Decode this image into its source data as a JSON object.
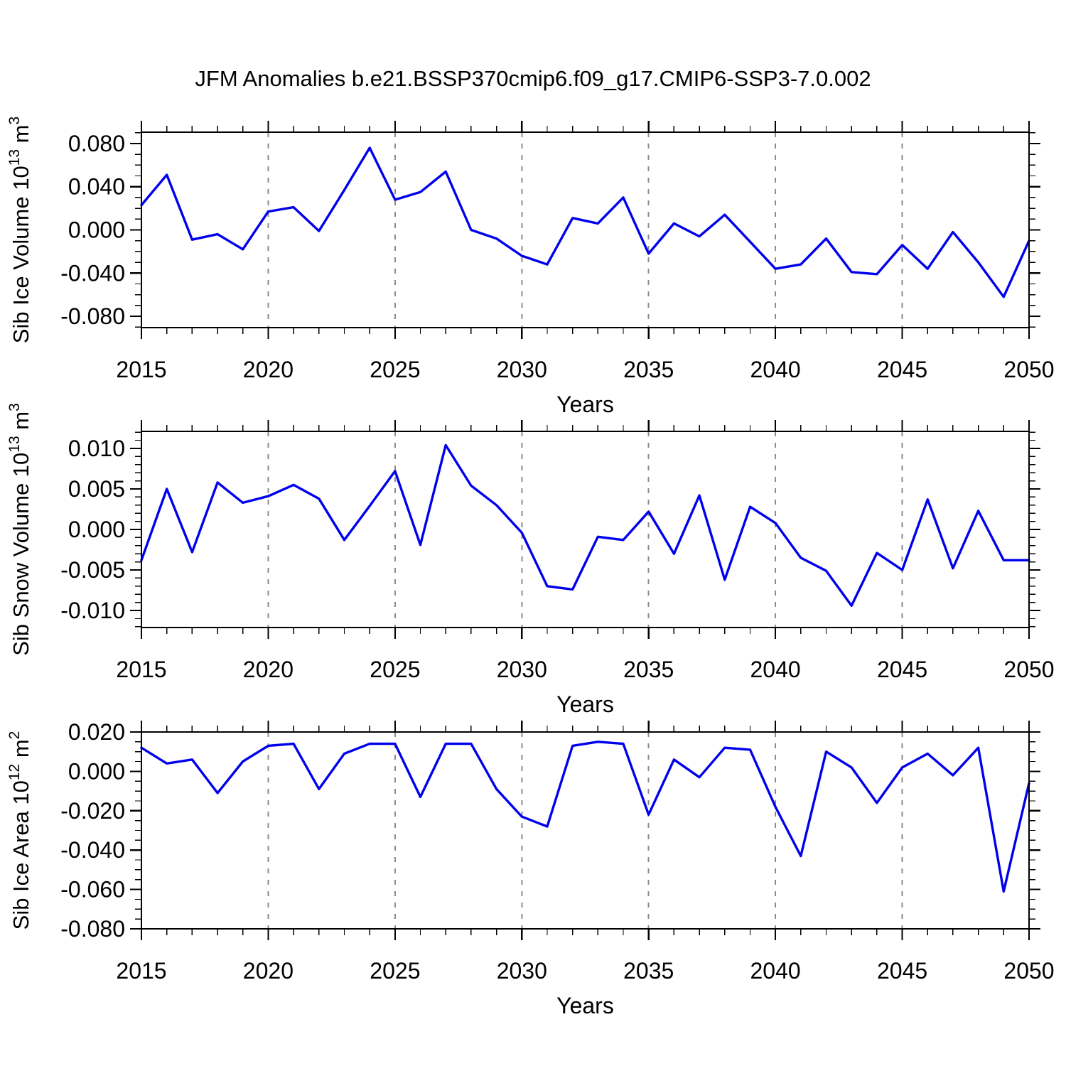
{
  "title": "JFM Anomalies b.e21.BSSP370cmip6.f09_g17.CMIP6-SSP3-7.0.002",
  "xlabel": "Years",
  "colors": {
    "line": "#0000ee",
    "frame": "#000000",
    "grid": "#8c8c8c",
    "text": "#000000",
    "background": "#ffffff"
  },
  "years": [
    2015,
    2016,
    2017,
    2018,
    2019,
    2020,
    2021,
    2022,
    2023,
    2024,
    2025,
    2026,
    2027,
    2028,
    2029,
    2030,
    2031,
    2032,
    2033,
    2034,
    2035,
    2036,
    2037,
    2038,
    2039,
    2040,
    2041,
    2042,
    2043,
    2044,
    2045,
    2046,
    2047,
    2048,
    2049,
    2050
  ],
  "x_axis": {
    "min": 2015,
    "max": 2050,
    "major_ticks": [
      2015,
      2020,
      2025,
      2030,
      2035,
      2040,
      2045,
      2050
    ],
    "minor_step": 1,
    "gridline_years": [
      2020,
      2025,
      2030,
      2035,
      2040,
      2045
    ],
    "grid_on": "dashed-vertical-only"
  },
  "chart_data": [
    {
      "type": "line",
      "name": "sib-ice-volume",
      "ylabel": "Sib Ice Volume 10^13 m^3",
      "ylabel_parts": [
        {
          "t": "Sib Ice Volume 10"
        },
        {
          "sup": "13"
        },
        {
          "t": " m"
        },
        {
          "sup": "3"
        }
      ],
      "ylim": [
        -0.0905,
        0.0905
      ],
      "ytick_values": [
        0.08,
        0.04,
        0.0,
        -0.04,
        -0.08
      ],
      "ytick_labels": [
        "0.080",
        "0.040",
        "0.000",
        "-0.040",
        "-0.080"
      ],
      "yminor_step": 0.01,
      "values": [
        0.023,
        0.051,
        -0.009,
        -0.004,
        -0.018,
        0.017,
        0.021,
        -0.001,
        0.037,
        0.076,
        0.028,
        0.035,
        0.054,
        0.0,
        -0.008,
        -0.024,
        -0.032,
        0.011,
        0.006,
        0.03,
        -0.022,
        0.006,
        -0.006,
        0.014,
        -0.011,
        -0.036,
        -0.032,
        -0.008,
        -0.039,
        -0.041,
        -0.014,
        -0.036,
        -0.002,
        -0.03,
        -0.062,
        -0.01
      ]
    },
    {
      "type": "line",
      "name": "sib-snow-volume",
      "ylabel": "Sib Snow Volume 10^13 m^3",
      "ylabel_parts": [
        {
          "t": "Sib Snow Volume 10"
        },
        {
          "sup": "13"
        },
        {
          "t": " m"
        },
        {
          "sup": "3"
        }
      ],
      "ylim": [
        -0.0121,
        0.0121
      ],
      "ytick_values": [
        0.01,
        0.005,
        0.0,
        -0.005,
        -0.01
      ],
      "ytick_labels": [
        "0.010",
        "0.005",
        "0.000",
        "-0.005",
        "-0.010"
      ],
      "yminor_step": 0.001,
      "values": [
        -0.0038,
        0.005,
        -0.0028,
        0.0058,
        0.0033,
        0.0041,
        0.0055,
        0.0038,
        -0.0013,
        0.0029,
        0.0072,
        -0.0019,
        0.0104,
        0.0054,
        0.003,
        -0.0004,
        -0.007,
        -0.0074,
        -0.0009,
        -0.0013,
        0.0022,
        -0.003,
        0.0042,
        -0.0062,
        0.0028,
        0.0008,
        -0.0035,
        -0.0051,
        -0.0094,
        -0.0029,
        -0.005,
        0.0037,
        -0.0048,
        0.0023,
        -0.0038,
        -0.0038
      ]
    },
    {
      "type": "line",
      "name": "sib-ice-area",
      "ylabel": "Sib Ice Area 10^12 m^2",
      "ylabel_parts": [
        {
          "t": "Sib Ice Area 10"
        },
        {
          "sup": "12"
        },
        {
          "t": " m"
        },
        {
          "sup": "2"
        }
      ],
      "ylim": [
        -0.08,
        0.02
      ],
      "ytick_values": [
        0.02,
        0.0,
        -0.02,
        -0.04,
        -0.06,
        -0.08
      ],
      "ytick_labels": [
        "0.020",
        "0.000",
        "-0.020",
        "-0.040",
        "-0.060",
        "-0.080"
      ],
      "yminor_step": 0.005,
      "values": [
        0.012,
        0.004,
        0.006,
        -0.011,
        0.005,
        0.013,
        0.014,
        -0.009,
        0.009,
        0.014,
        0.014,
        -0.013,
        0.014,
        0.014,
        -0.009,
        -0.023,
        -0.028,
        0.013,
        0.015,
        0.014,
        -0.022,
        0.006,
        -0.003,
        0.012,
        0.011,
        -0.018,
        -0.043,
        0.01,
        0.002,
        -0.016,
        0.002,
        0.009,
        -0.002,
        0.012,
        -0.061,
        -0.006
      ]
    }
  ]
}
